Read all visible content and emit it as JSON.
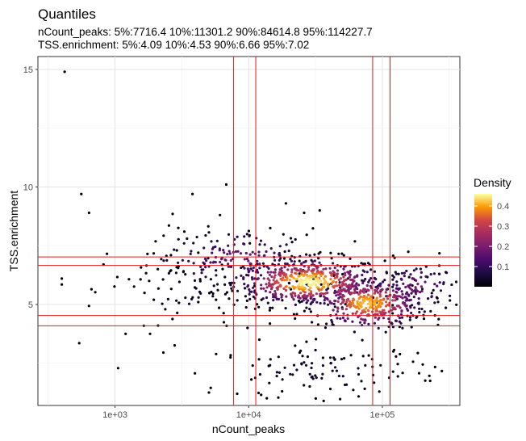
{
  "chart_data": {
    "type": "scatter",
    "title": "Quantiles",
    "subtitle_lines": [
      "nCount_peaks: 5%:7716.4 10%:11301.2 90%:84614.8 95%:114227.7",
      "TSS.enrichment: 5%:4.09 10%:4.53 90%:6.66 95%:7.02"
    ],
    "xlabel": "nCount_peaks",
    "ylabel": "TSS.enrichment",
    "x_scale": "log10",
    "xlim": [
      265,
      380000
    ],
    "ylim": [
      0.7,
      15.55
    ],
    "x_ticks": [
      {
        "value": 1000,
        "label": "1e+03"
      },
      {
        "value": 10000,
        "label": "1e+04"
      },
      {
        "value": 100000,
        "label": "1e+05"
      }
    ],
    "y_ticks": [
      {
        "value": 5,
        "label": "5"
      },
      {
        "value": 10,
        "label": "10"
      },
      {
        "value": 15,
        "label": "15"
      }
    ],
    "grid": true,
    "vlines": [
      7716.4,
      11301.2,
      84614.8,
      114227.7
    ],
    "hlines": [
      4.09,
      4.53,
      6.66,
      7.02
    ],
    "reference_line_color": "#e31a1c",
    "colorscale": "inferno",
    "legend": {
      "title": "Density",
      "position": "right",
      "range": [
        0,
        0.46
      ],
      "ticks": [
        0.1,
        0.2,
        0.3,
        0.4
      ],
      "tick_labels": [
        "0.1",
        "0.2",
        "0.3",
        "0.4"
      ]
    },
    "outlier_points": [
      [
        420,
        14.9
      ],
      [
        560,
        9.7
      ],
      [
        640,
        8.9
      ],
      [
        820,
        6.7
      ],
      [
        400,
        6.1
      ],
      [
        400,
        5.85
      ],
      [
        540,
        3.35
      ],
      [
        1200,
        3.75
      ],
      [
        1750,
        7.15
      ],
      [
        1800,
        6.0
      ],
      [
        1830,
        3.75
      ],
      [
        1950,
        5.2
      ],
      [
        2100,
        4.1
      ],
      [
        2300,
        2.95
      ],
      [
        2700,
        8.85
      ],
      [
        2900,
        7.3
      ],
      [
        3300,
        8.1
      ],
      [
        3800,
        9.7
      ],
      [
        4200,
        7.2
      ],
      [
        4200,
        5.1
      ],
      [
        5200,
        1.45
      ],
      [
        6800,
        10.1
      ],
      [
        8200,
        1.2
      ],
      [
        9800,
        4.0
      ],
      [
        12000,
        3.5
      ],
      [
        12400,
        1.15
      ],
      [
        14500,
        8.25
      ],
      [
        19000,
        9.3
      ],
      [
        24000,
        6.85
      ],
      [
        26000,
        8.9
      ],
      [
        34000,
        9.0
      ]
    ],
    "density_clusters": [
      {
        "cx": 28000,
        "cy": 5.95,
        "sx_log": 0.28,
        "sy": 0.52,
        "n": 520,
        "peak": 0.46
      },
      {
        "cx": 78000,
        "cy": 5.05,
        "sx_log": 0.22,
        "sy": 0.55,
        "n": 380,
        "peak": 0.42
      },
      {
        "cx": 8500,
        "cy": 6.9,
        "sx_log": 0.33,
        "sy": 0.65,
        "n": 170,
        "peak": 0.18
      },
      {
        "cx": 40000,
        "cy": 2.2,
        "sx_log": 0.42,
        "sy": 0.55,
        "n": 110,
        "peak": 0.05
      },
      {
        "cx": 180000,
        "cy": 5.75,
        "sx_log": 0.15,
        "sy": 0.55,
        "n": 90,
        "peak": 0.2
      },
      {
        "cx": 3500,
        "cy": 5.6,
        "sx_log": 0.28,
        "sy": 1.1,
        "n": 60,
        "peak": 0.04
      }
    ]
  }
}
